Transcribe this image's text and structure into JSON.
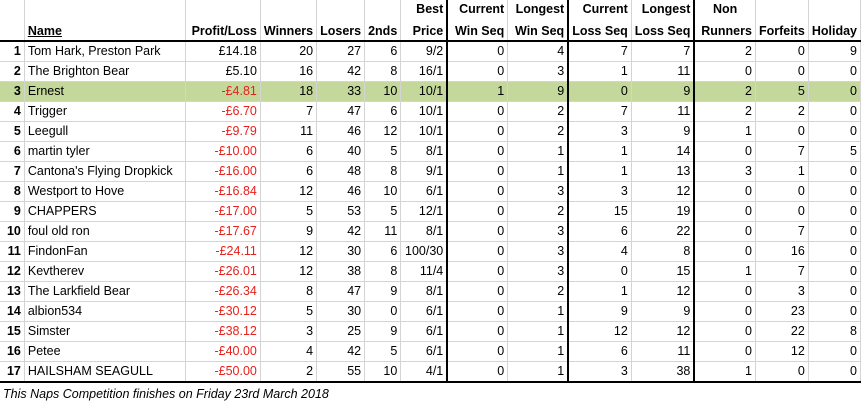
{
  "headers": {
    "num": "",
    "name": "Name",
    "profit_loss": "Profit/Loss",
    "winners": "Winners",
    "losers": "Losers",
    "seconds": "2nds",
    "best_price_1": "Best",
    "best_price_2": "Price",
    "current_win_1": "Current",
    "current_win_2": "Win Seq",
    "longest_win_1": "Longest",
    "longest_win_2": "Win Seq",
    "current_loss_1": "Current",
    "current_loss_2": "Loss Seq",
    "longest_loss_1": "Longest",
    "longest_loss_2": "Loss Seq",
    "non_runners_1": "Non",
    "non_runners_2": "Runners",
    "forfeits": "Forfeits",
    "holiday": "Holiday"
  },
  "rows": [
    {
      "rank": "1",
      "name": "Tom Hark, Preston Park",
      "pl": "£14.18",
      "neg": false,
      "w": "20",
      "l": "27",
      "s": "6",
      "bp": "9/2",
      "cws": "0",
      "lws": "4",
      "cls": "7",
      "lls": "7",
      "nr": "2",
      "f": "0",
      "h": "9"
    },
    {
      "rank": "2",
      "name": "The Brighton Bear",
      "pl": "£5.10",
      "neg": false,
      "w": "16",
      "l": "42",
      "s": "8",
      "bp": "16/1",
      "cws": "0",
      "lws": "3",
      "cls": "1",
      "lls": "11",
      "nr": "0",
      "f": "0",
      "h": "0"
    },
    {
      "rank": "3",
      "name": "Ernest",
      "pl": "-£4.81",
      "neg": true,
      "w": "18",
      "l": "33",
      "s": "10",
      "bp": "10/1",
      "cws": "1",
      "lws": "9",
      "cls": "0",
      "lls": "9",
      "nr": "2",
      "f": "5",
      "h": "0",
      "highlight": true
    },
    {
      "rank": "4",
      "name": "Trigger",
      "pl": "-£6.70",
      "neg": true,
      "w": "7",
      "l": "47",
      "s": "6",
      "bp": "10/1",
      "cws": "0",
      "lws": "2",
      "cls": "7",
      "lls": "11",
      "nr": "2",
      "f": "2",
      "h": "0"
    },
    {
      "rank": "5",
      "name": "Leegull",
      "pl": "-£9.79",
      "neg": true,
      "w": "11",
      "l": "46",
      "s": "12",
      "bp": "10/1",
      "cws": "0",
      "lws": "2",
      "cls": "3",
      "lls": "9",
      "nr": "1",
      "f": "0",
      "h": "0"
    },
    {
      "rank": "6",
      "name": "martin tyler",
      "pl": "-£10.00",
      "neg": true,
      "w": "6",
      "l": "40",
      "s": "5",
      "bp": "8/1",
      "cws": "0",
      "lws": "1",
      "cls": "1",
      "lls": "14",
      "nr": "0",
      "f": "7",
      "h": "5"
    },
    {
      "rank": "7",
      "name": "Cantona's Flying Dropkick",
      "pl": "-£16.00",
      "neg": true,
      "w": "6",
      "l": "48",
      "s": "8",
      "bp": "9/1",
      "cws": "0",
      "lws": "1",
      "cls": "1",
      "lls": "13",
      "nr": "3",
      "f": "1",
      "h": "0"
    },
    {
      "rank": "8",
      "name": "Westport to Hove",
      "pl": "-£16.84",
      "neg": true,
      "w": "12",
      "l": "46",
      "s": "10",
      "bp": "6/1",
      "cws": "0",
      "lws": "3",
      "cls": "3",
      "lls": "12",
      "nr": "0",
      "f": "0",
      "h": "0"
    },
    {
      "rank": "9",
      "name": "CHAPPERS",
      "pl": "-£17.00",
      "neg": true,
      "w": "5",
      "l": "53",
      "s": "5",
      "bp": "12/1",
      "cws": "0",
      "lws": "2",
      "cls": "15",
      "lls": "19",
      "nr": "0",
      "f": "0",
      "h": "0"
    },
    {
      "rank": "10",
      "name": "foul old ron",
      "pl": "-£17.67",
      "neg": true,
      "w": "9",
      "l": "42",
      "s": "11",
      "bp": "8/1",
      "cws": "0",
      "lws": "3",
      "cls": "6",
      "lls": "22",
      "nr": "0",
      "f": "7",
      "h": "0"
    },
    {
      "rank": "11",
      "name": "FindonFan",
      "pl": "-£24.11",
      "neg": true,
      "w": "12",
      "l": "30",
      "s": "6",
      "bp": "100/30",
      "cws": "0",
      "lws": "3",
      "cls": "4",
      "lls": "8",
      "nr": "0",
      "f": "16",
      "h": "0"
    },
    {
      "rank": "12",
      "name": "Kevtherev",
      "pl": "-£26.01",
      "neg": true,
      "w": "12",
      "l": "38",
      "s": "8",
      "bp": "11/4",
      "cws": "0",
      "lws": "3",
      "cls": "0",
      "lls": "15",
      "nr": "1",
      "f": "7",
      "h": "0"
    },
    {
      "rank": "13",
      "name": "The Larkfield Bear",
      "pl": "-£26.34",
      "neg": true,
      "w": "8",
      "l": "47",
      "s": "9",
      "bp": "8/1",
      "cws": "0",
      "lws": "2",
      "cls": "1",
      "lls": "12",
      "nr": "0",
      "f": "3",
      "h": "0"
    },
    {
      "rank": "14",
      "name": "albion534",
      "pl": "-£30.12",
      "neg": true,
      "w": "5",
      "l": "30",
      "s": "0",
      "bp": "6/1",
      "cws": "0",
      "lws": "1",
      "cls": "9",
      "lls": "9",
      "nr": "0",
      "f": "23",
      "h": "0"
    },
    {
      "rank": "15",
      "name": "Simster",
      "pl": "-£38.12",
      "neg": true,
      "w": "3",
      "l": "25",
      "s": "9",
      "bp": "6/1",
      "cws": "0",
      "lws": "1",
      "cls": "12",
      "lls": "12",
      "nr": "0",
      "f": "22",
      "h": "8"
    },
    {
      "rank": "16",
      "name": "Petee",
      "pl": "-£40.00",
      "neg": true,
      "w": "4",
      "l": "42",
      "s": "5",
      "bp": "6/1",
      "cws": "0",
      "lws": "1",
      "cls": "6",
      "lls": "11",
      "nr": "0",
      "f": "12",
      "h": "0"
    },
    {
      "rank": "17",
      "name": "HAILSHAM SEAGULL",
      "pl": "-£50.00",
      "neg": true,
      "w": "2",
      "l": "55",
      "s": "10",
      "bp": "4/1",
      "cws": "0",
      "lws": "1",
      "cls": "3",
      "lls": "38",
      "nr": "1",
      "f": "0",
      "h": "0"
    }
  ],
  "footer": "This Naps Competition finishes on Friday 23rd March 2018",
  "colors": {
    "highlight_row": "#c4d89b",
    "negative_value": "#e8201b",
    "grid": "#d4d4d4"
  }
}
